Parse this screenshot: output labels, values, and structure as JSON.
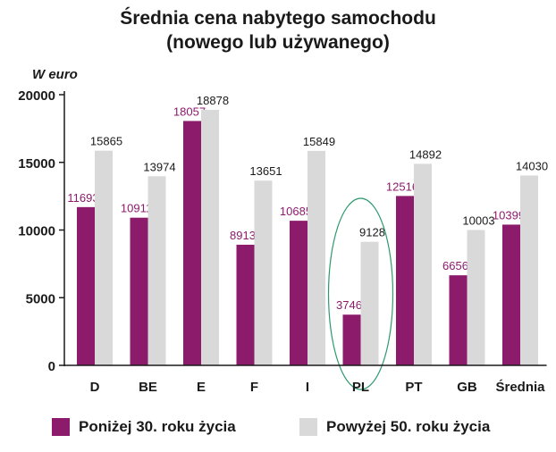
{
  "colors": {
    "series_low": "#8c1b6c",
    "series_high": "#d9d9d9",
    "label_low": "#8c1b6c",
    "label_high": "#1a1a1a",
    "ellipse": "#2e9a6e"
  },
  "chart_data": {
    "type": "bar",
    "title": "Średnia cena nabytego samochodu",
    "subtitle": "(nowego lub używanego)",
    "ylabel": "W euro",
    "ylim": [
      0,
      20000
    ],
    "yticks": [
      "0",
      "5000",
      "10000",
      "15000",
      "20000"
    ],
    "yticks_values": [
      0,
      5000,
      10000,
      15000,
      20000
    ],
    "grid": false,
    "legend_position": "bottom",
    "categories": [
      "D",
      "BE",
      "E",
      "F",
      "I",
      "PL",
      "PT",
      "GB",
      "Średnia"
    ],
    "series": [
      {
        "name": "Poniżej 30. roku życia",
        "values": [
          11693,
          10911,
          18057,
          8913,
          10685,
          3746,
          12516,
          6656,
          10399
        ]
      },
      {
        "name": "Powyżej 50. roku życia",
        "values": [
          15865,
          13974,
          18878,
          13651,
          15849,
          9128,
          14892,
          10003,
          14030
        ]
      }
    ],
    "highlight_category": "PL"
  }
}
